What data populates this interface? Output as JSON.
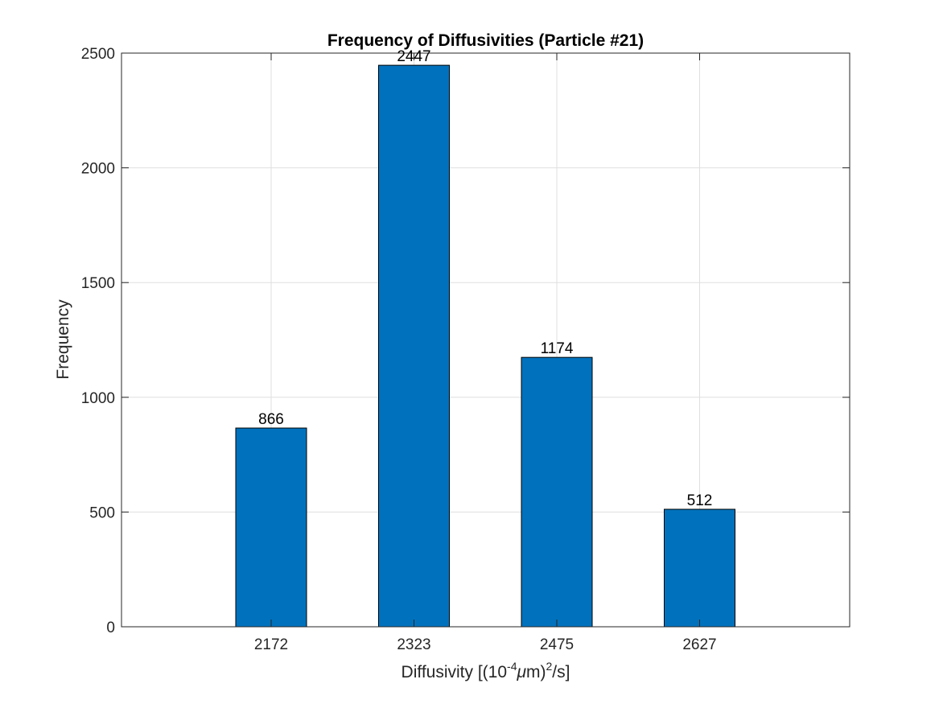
{
  "chart_data": {
    "type": "bar",
    "title": "Frequency of Diffusivities (Particle #21)",
    "xlabel": {
      "prefix": "Diffusivity [(10",
      "exp1": "-4",
      "mu": "μ",
      "mid": "m)",
      "exp2": "2",
      "suffix": "/s]"
    },
    "ylabel": "Frequency",
    "categories": [
      "2172",
      "2323",
      "2475",
      "2627"
    ],
    "values": [
      866,
      2447,
      1174,
      512
    ],
    "data_labels": [
      "866",
      "2447",
      "1174",
      "512"
    ],
    "ylim": [
      0,
      2500
    ],
    "yticks": [
      0,
      500,
      1000,
      1500,
      2000,
      2500
    ],
    "ytick_labels": [
      "0",
      "500",
      "1000",
      "1500",
      "2000",
      "2500"
    ],
    "grid": true,
    "box": true,
    "colors": {
      "bar": "#0072BD",
      "bar_edge": "#000000",
      "grid": "#dfdfdf",
      "axis": "#262626"
    }
  }
}
